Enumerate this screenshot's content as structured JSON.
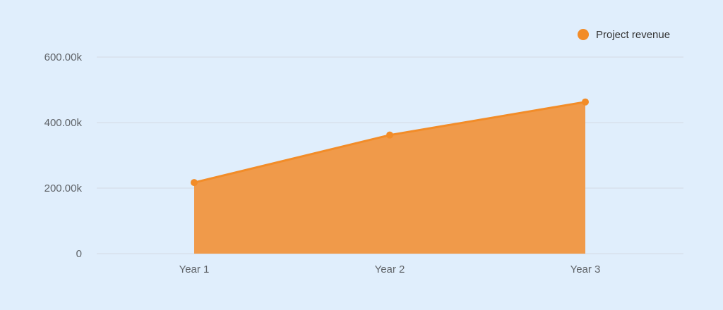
{
  "chart_data": {
    "type": "area",
    "categories": [
      "Year 1",
      "Year 2",
      "Year 3"
    ],
    "series": [
      {
        "name": "Project revenue",
        "values": [
          217000,
          362000,
          463000
        ]
      }
    ],
    "ylim": [
      0,
      600000
    ],
    "yticks": [
      0,
      200000,
      400000,
      600000
    ],
    "ytick_labels": [
      "0",
      "200.00k",
      "400.00k",
      "600.00k"
    ],
    "grid": true,
    "legend_position": "top-right",
    "colors": {
      "series": "#f28c28",
      "area": "#f09a4a",
      "background": "#e0eefc",
      "grid": "#d3dbe3"
    }
  }
}
